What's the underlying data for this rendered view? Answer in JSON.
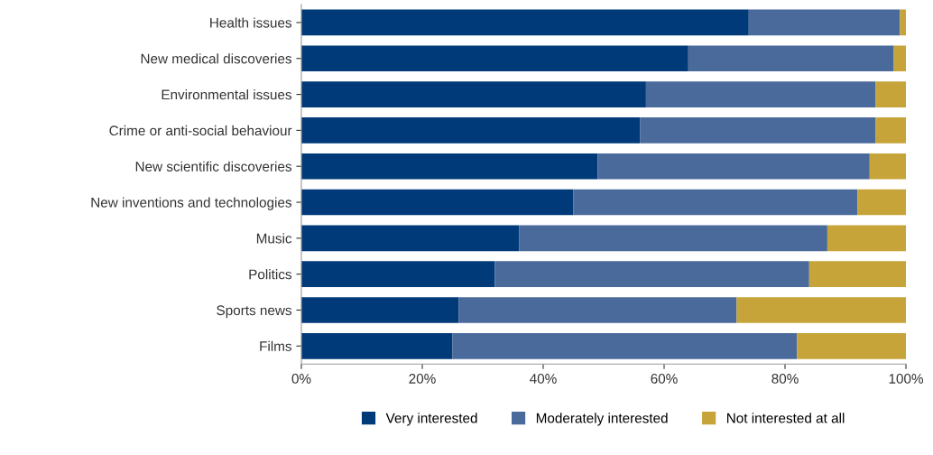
{
  "chart_data": {
    "type": "bar",
    "orientation": "horizontal",
    "stacked": true,
    "categories": [
      "Health issues",
      "New medical discoveries",
      "Environmental issues",
      "Crime or anti-social behaviour",
      "New scientific discoveries",
      "New inventions and technologies",
      "Music",
      "Politics",
      "Sports news",
      "Films"
    ],
    "series": [
      {
        "name": "Very interested",
        "color": "#003a78",
        "values": [
          74,
          64,
          57,
          56,
          49,
          45,
          36,
          32,
          26,
          25
        ]
      },
      {
        "name": "Moderately interested",
        "color": "#4a6a9c",
        "values": [
          25,
          34,
          38,
          39,
          45,
          47,
          51,
          52,
          46,
          57
        ]
      },
      {
        "name": "Not interested at all",
        "color": "#c6a43a",
        "values": [
          1,
          2,
          5,
          5,
          6,
          8,
          13,
          16,
          28,
          18
        ]
      }
    ],
    "xlim": [
      0,
      100
    ],
    "xticks": [
      {
        "value": 0,
        "label": "0%"
      },
      {
        "value": 20,
        "label": "20%"
      },
      {
        "value": 40,
        "label": "40%"
      },
      {
        "value": 60,
        "label": "60%"
      },
      {
        "value": 80,
        "label": "80%"
      },
      {
        "value": 100,
        "label": "100%"
      }
    ],
    "grid": false,
    "legend": "bottom"
  }
}
